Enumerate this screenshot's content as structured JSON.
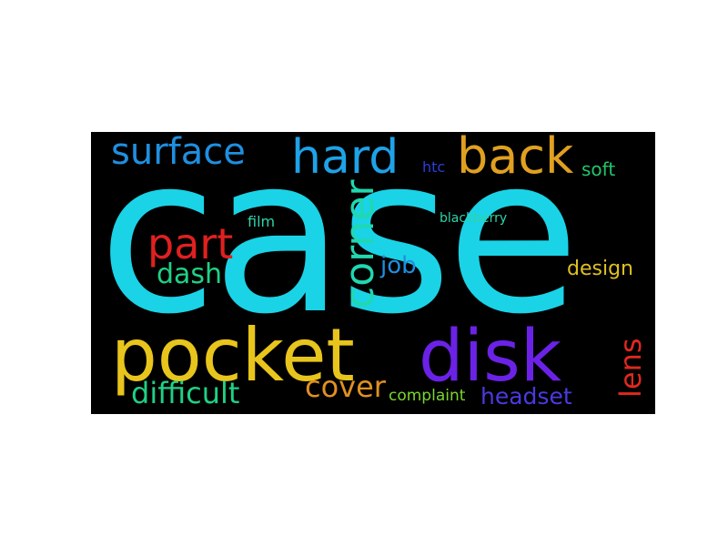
{
  "words": [
    {
      "key": "case",
      "text": "case",
      "color": "#1ad3e6"
    },
    {
      "key": "surface",
      "text": "surface",
      "color": "#1f8fe0"
    },
    {
      "key": "hard",
      "text": "hard",
      "color": "#1ea2e8"
    },
    {
      "key": "back",
      "text": "back",
      "color": "#e0a020"
    },
    {
      "key": "soft",
      "text": "soft",
      "color": "#22c46a"
    },
    {
      "key": "htc",
      "text": "htc",
      "color": "#2a3fd8"
    },
    {
      "key": "film",
      "text": "film",
      "color": "#2fd3a8"
    },
    {
      "key": "blackberry",
      "text": "blackberry",
      "color": "#2fd3a8"
    },
    {
      "key": "part",
      "text": "part",
      "color": "#e02020"
    },
    {
      "key": "dash",
      "text": "dash",
      "color": "#1fd184"
    },
    {
      "key": "corner",
      "text": "corner",
      "color": "#20d8b0"
    },
    {
      "key": "job",
      "text": "job",
      "color": "#1e8fe0"
    },
    {
      "key": "design",
      "text": "design",
      "color": "#e0c020"
    },
    {
      "key": "pocket",
      "text": "pocket",
      "color": "#e8c51c"
    },
    {
      "key": "disk",
      "text": "disk",
      "color": "#6b22e6"
    },
    {
      "key": "lens",
      "text": "lens",
      "color": "#e0281e"
    },
    {
      "key": "difficult",
      "text": "difficult",
      "color": "#1fd184"
    },
    {
      "key": "cover",
      "text": "cover",
      "color": "#e09020"
    },
    {
      "key": "complaint",
      "text": "complaint",
      "color": "#7ad82a"
    },
    {
      "key": "headset",
      "text": "headset",
      "color": "#4a3ae0"
    }
  ]
}
